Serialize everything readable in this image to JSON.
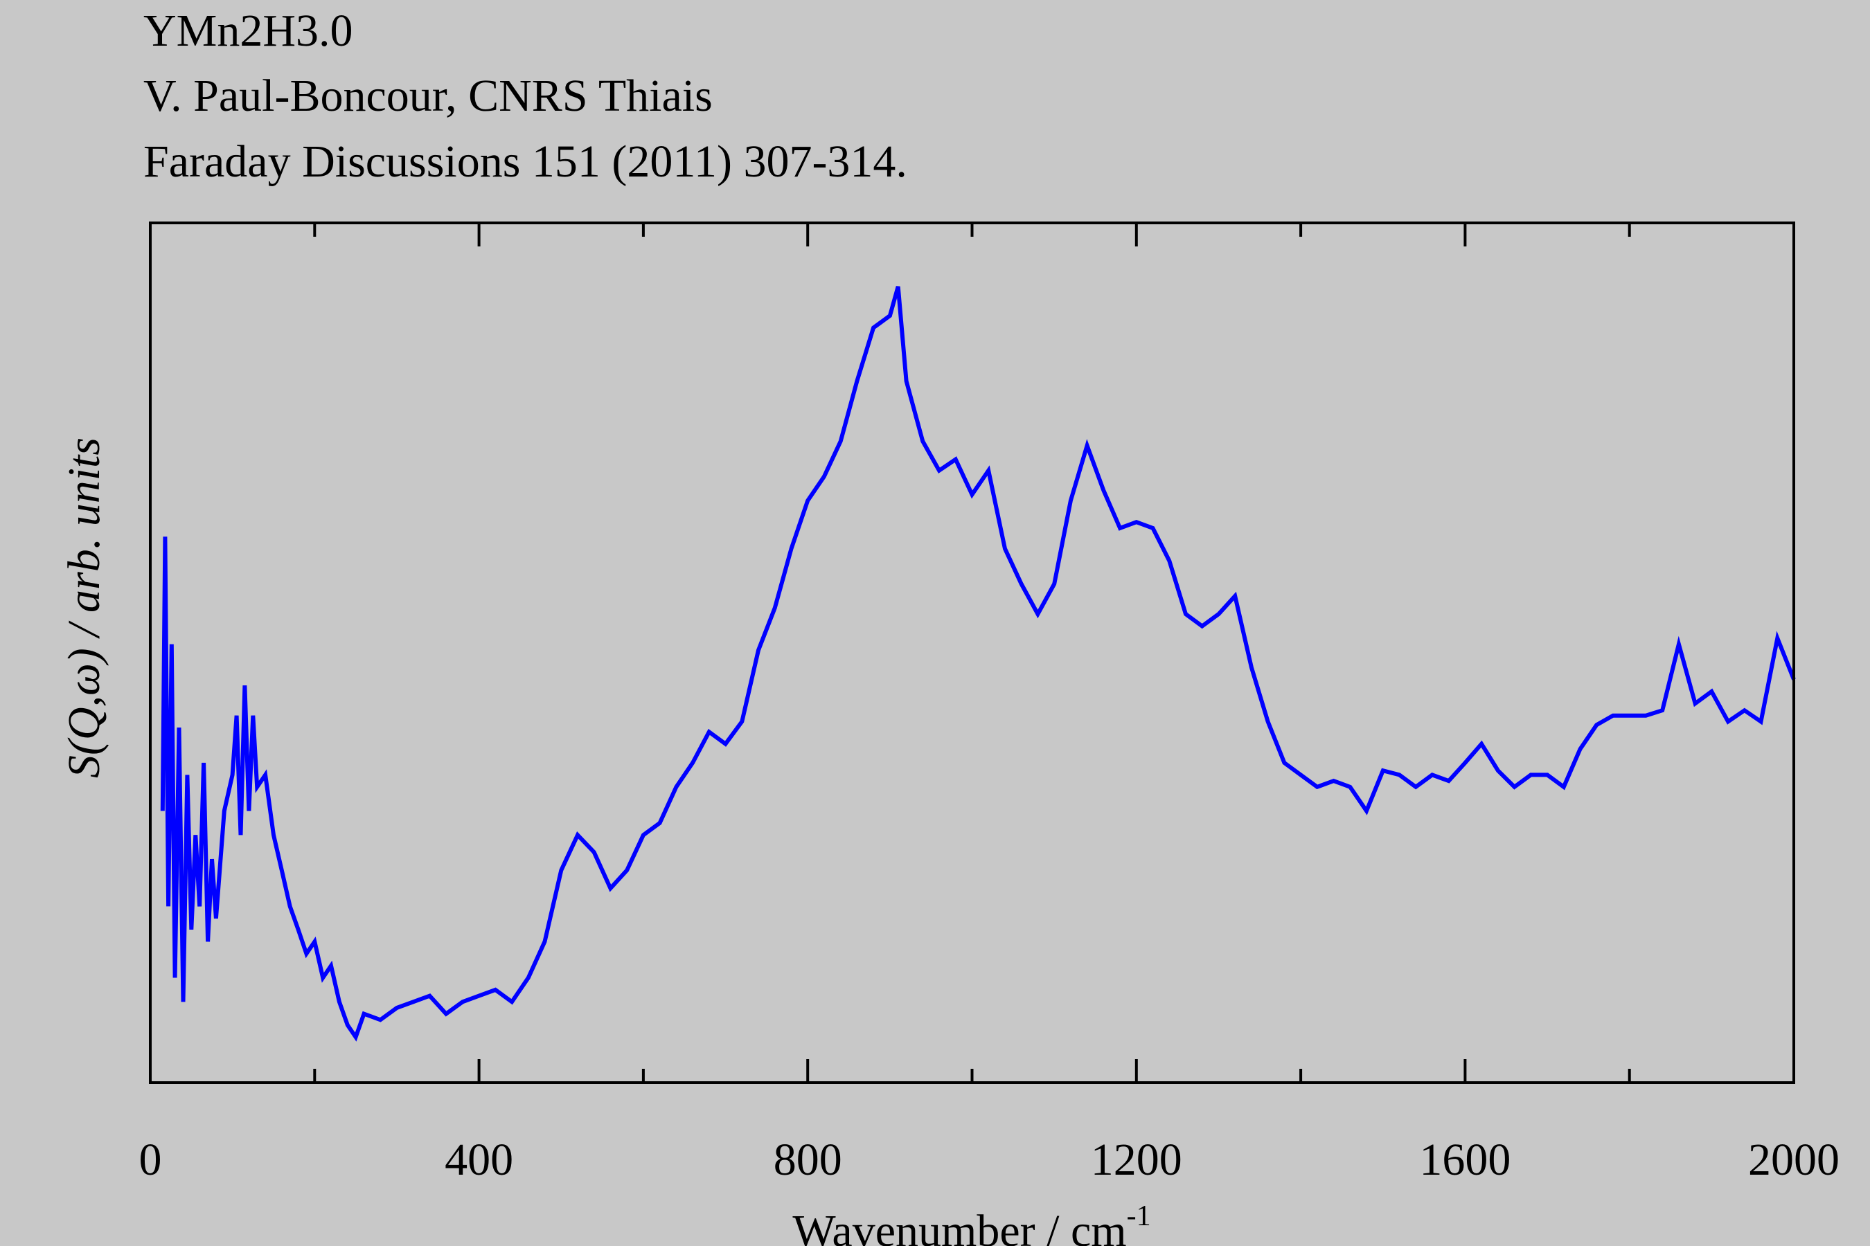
{
  "chart_data": {
    "type": "line",
    "title_lines": [
      "YMn2H3.0",
      "V. Paul-Boncour, CNRS Thiais",
      "Faraday Discussions 151 (2011) 307-314."
    ],
    "x_label": "Wavenumber / cm",
    "x_label_sup": "-1",
    "y_label": "S(Q,ω) / arb. units",
    "xlim": [
      0,
      2000
    ],
    "xticks": [
      0,
      400,
      800,
      1200,
      1600,
      2000
    ],
    "xminorticks": [
      200,
      600,
      1000,
      1400,
      1800
    ],
    "ylim": [
      0,
      100
    ],
    "series": [
      {
        "color": "#0000ff",
        "x": [
          15,
          18,
          22,
          26,
          30,
          35,
          40,
          45,
          50,
          55,
          60,
          65,
          70,
          75,
          80,
          90,
          100,
          105,
          110,
          115,
          120,
          125,
          130,
          140,
          150,
          160,
          170,
          180,
          190,
          200,
          210,
          220,
          230,
          240,
          250,
          260,
          280,
          300,
          320,
          340,
          360,
          380,
          400,
          420,
          440,
          460,
          480,
          500,
          520,
          540,
          560,
          580,
          600,
          620,
          640,
          660,
          680,
          700,
          720,
          740,
          760,
          780,
          800,
          820,
          840,
          860,
          880,
          900,
          910,
          920,
          940,
          960,
          980,
          1000,
          1020,
          1040,
          1060,
          1080,
          1100,
          1120,
          1140,
          1160,
          1180,
          1200,
          1220,
          1240,
          1260,
          1280,
          1300,
          1320,
          1340,
          1360,
          1380,
          1400,
          1420,
          1440,
          1460,
          1480,
          1500,
          1520,
          1540,
          1560,
          1580,
          1600,
          1620,
          1640,
          1660,
          1680,
          1700,
          1720,
          1740,
          1760,
          1780,
          1800,
          1820,
          1840,
          1860,
          1880,
          1900,
          1920,
          1940,
          1960,
          1980,
          2000
        ],
        "values": [
          31.6,
          63.5,
          20.5,
          51,
          12.2,
          41.3,
          9.4,
          35.8,
          17.8,
          28.8,
          20.5,
          37.2,
          16.4,
          26,
          19.1,
          31.6,
          35.8,
          42.7,
          28.8,
          46.2,
          31.6,
          42.7,
          34.4,
          35.8,
          28.8,
          24.7,
          20.5,
          17.8,
          15,
          16.4,
          12.2,
          13.6,
          9.4,
          6.7,
          5.3,
          8,
          7.3,
          8.7,
          9.4,
          10.1,
          8,
          9.4,
          10.1,
          10.8,
          9.4,
          12.2,
          16.4,
          24.7,
          28.8,
          26.8,
          22.6,
          24.7,
          28.8,
          30.2,
          34.4,
          37.2,
          40.8,
          39.4,
          42,
          50.3,
          55.2,
          62.1,
          67.7,
          70.5,
          74.6,
          81.6,
          87.8,
          89.2,
          92.6,
          81.6,
          74.6,
          71.2,
          72.5,
          68.4,
          71.2,
          62.1,
          58,
          54.5,
          58,
          67.7,
          74.1,
          68.9,
          64.5,
          65.2,
          64.5,
          60.7,
          54.5,
          53.1,
          54.5,
          56.6,
          48.3,
          42,
          37.2,
          35.8,
          34.4,
          35.1,
          34.4,
          31.6,
          36.3,
          35.8,
          34.4,
          35.8,
          35.1,
          37.2,
          39.4,
          36.3,
          34.4,
          35.8,
          35.8,
          34.4,
          38.8,
          41.6,
          42.7,
          42.7,
          42.7,
          43.3,
          51,
          44.1,
          45.5,
          42,
          43.3,
          42,
          51.7,
          46.9
        ]
      }
    ]
  }
}
